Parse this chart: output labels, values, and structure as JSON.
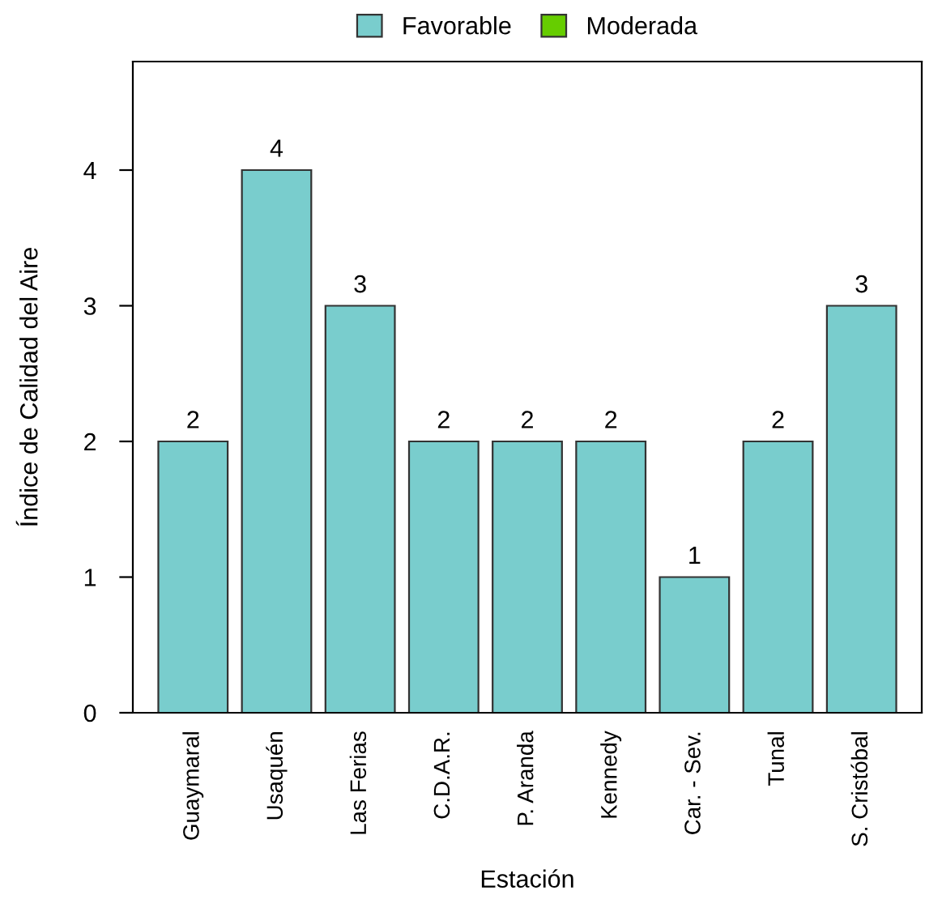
{
  "chart_data": {
    "type": "bar",
    "xlabel": "Estación",
    "ylabel": "Índice de Calidad del Aire",
    "categories": [
      "Guaymaral",
      "Usaquén",
      "Las Ferias",
      "C.D.A.R.",
      "P. Aranda",
      "Kennedy",
      "Car. - Sev.",
      "Tunal",
      "S. Cristóbal"
    ],
    "series": [
      {
        "name": "Favorable",
        "color": "#79cdcd",
        "values": [
          2,
          4,
          3,
          2,
          2,
          2,
          1,
          2,
          3
        ]
      },
      {
        "name": "Moderada",
        "color": "#66cd00",
        "values": [
          null,
          null,
          null,
          null,
          null,
          null,
          null,
          null,
          null
        ]
      }
    ],
    "ylim": [
      0,
      4.8
    ],
    "yticks": [
      0,
      1,
      2,
      3,
      4
    ],
    "data_labels": true,
    "legend": "top",
    "grid": false
  }
}
